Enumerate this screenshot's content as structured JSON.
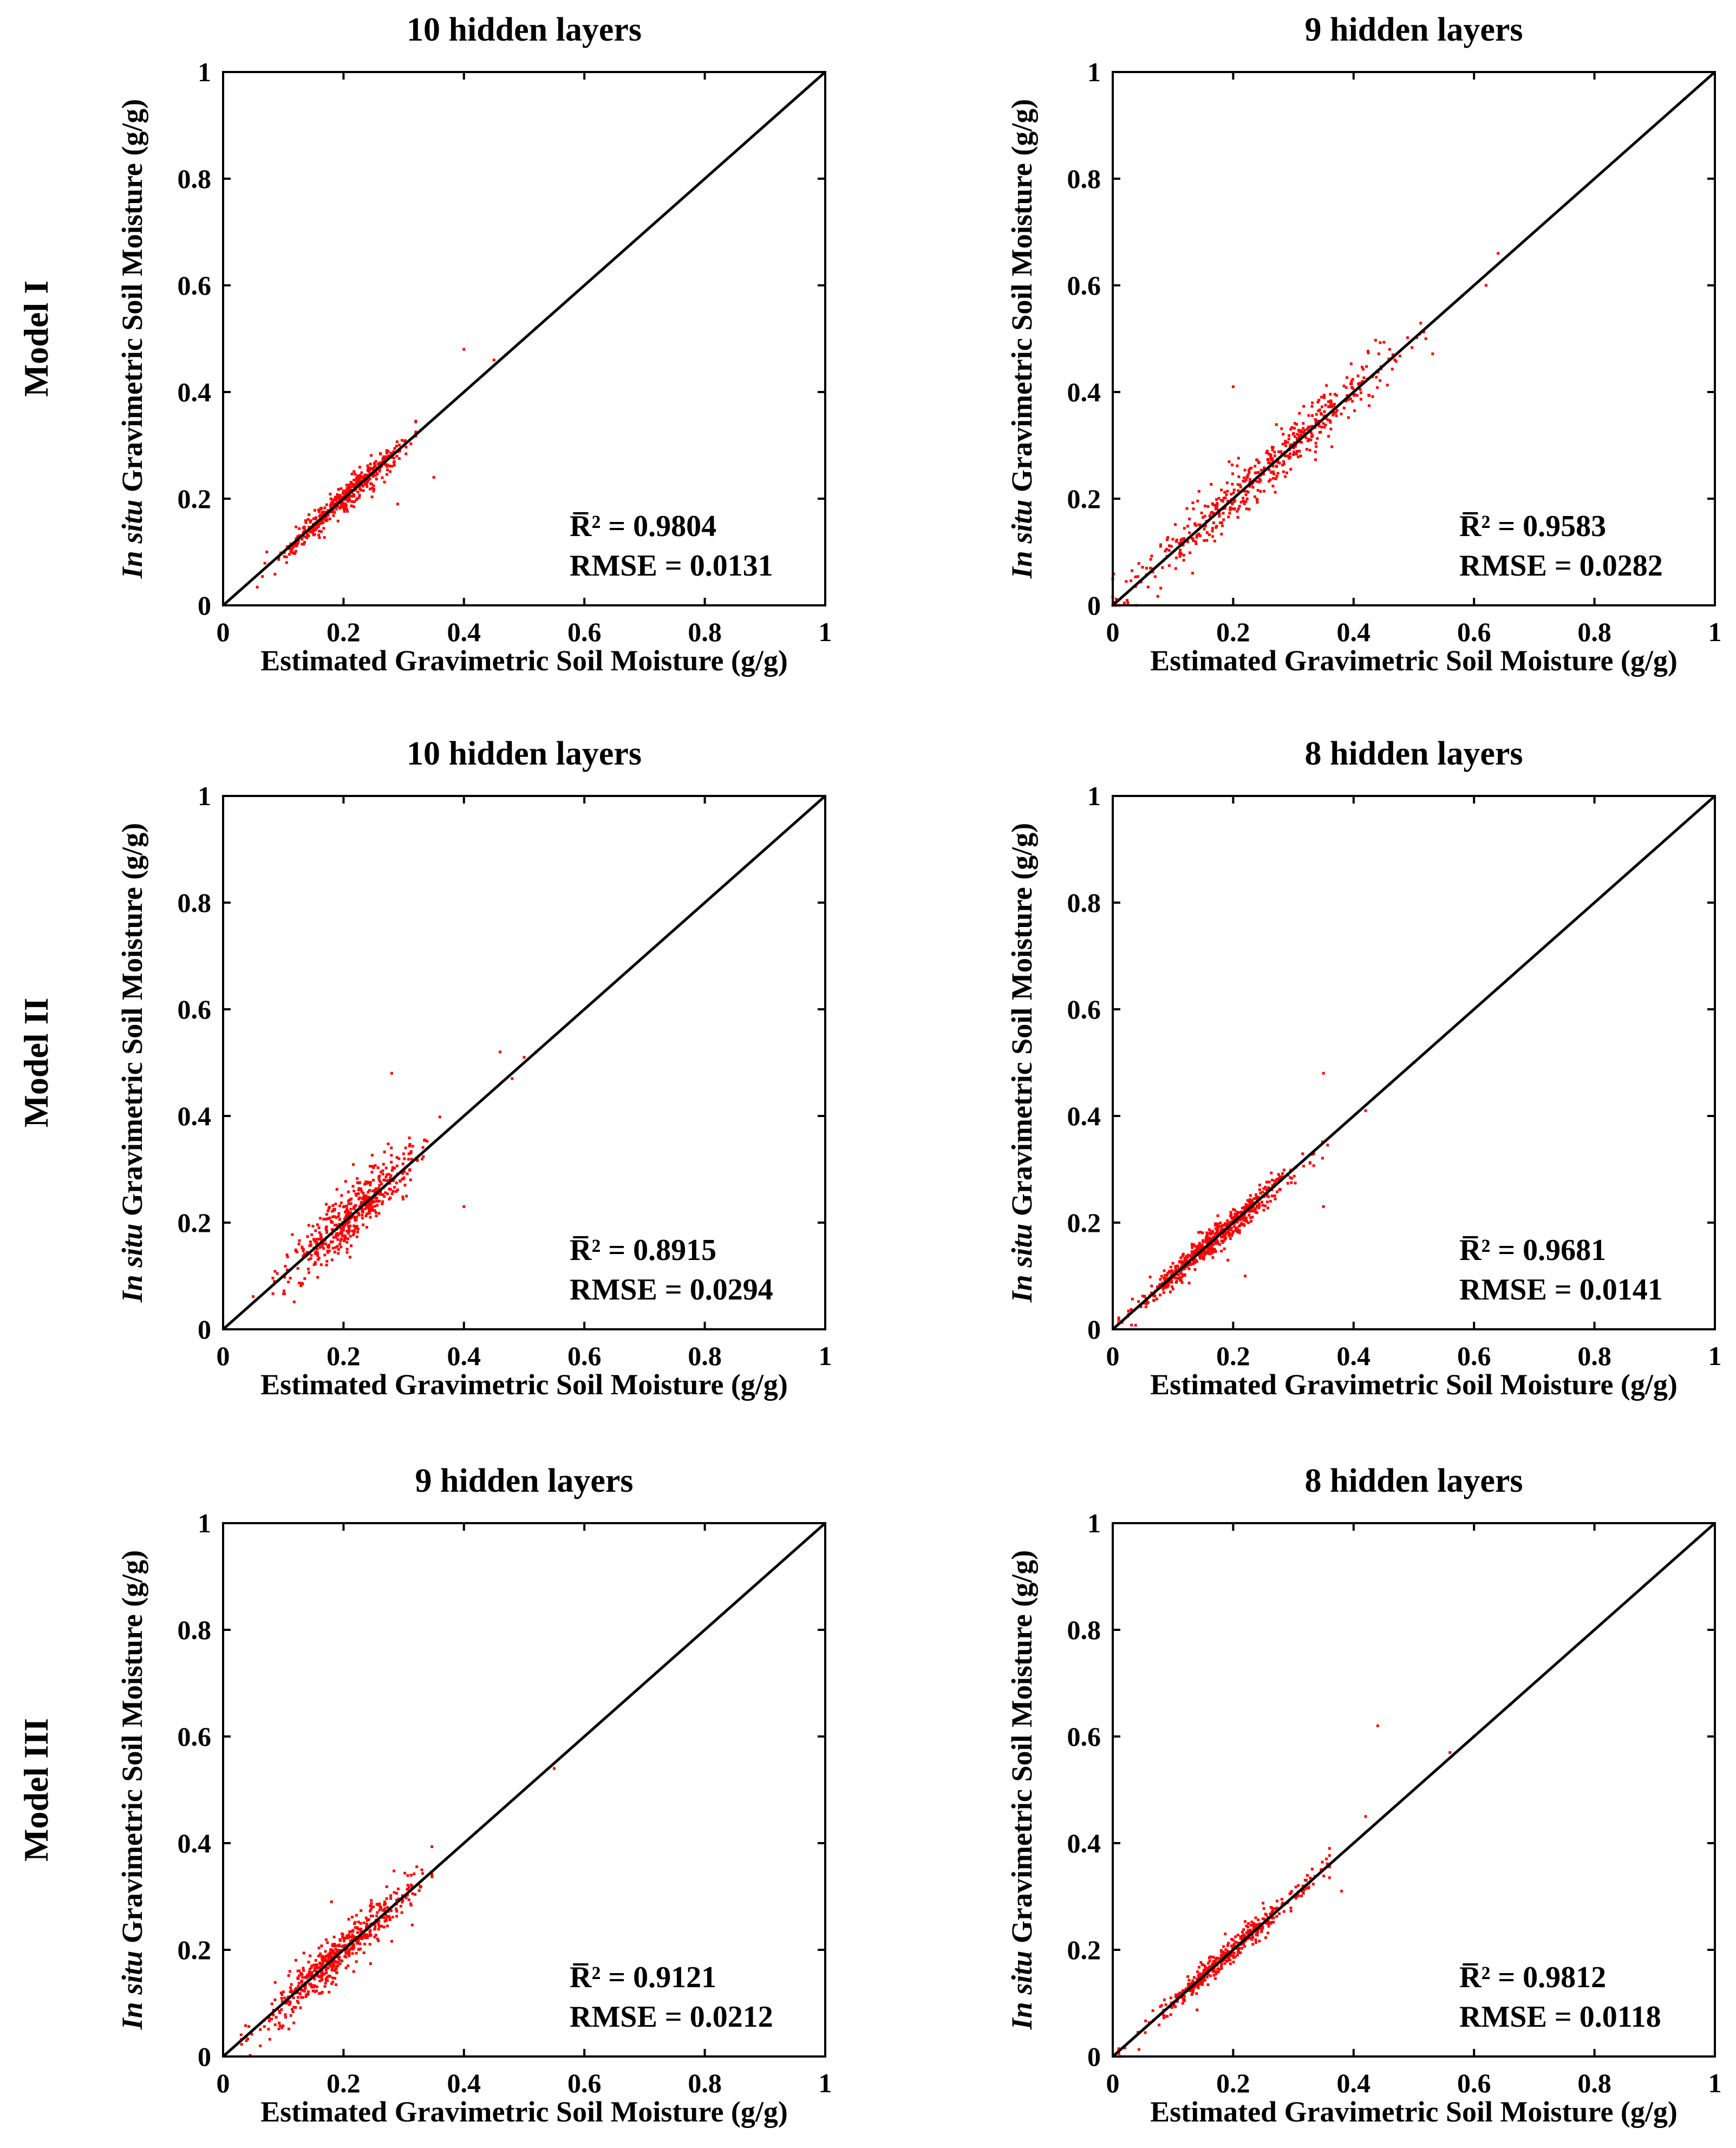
{
  "row_labels": [
    "Model I",
    "Model II",
    "Model III"
  ],
  "colors": {
    "points": "#ff0000",
    "line": "#000000"
  },
  "chart_data": [
    {
      "type": "scatter",
      "row": 0,
      "col": 0,
      "title": "10 hidden layers",
      "xlabel": "Estimated Gravimetric Soil Moisture (g/g)",
      "ylabel_italic": "In situ",
      "ylabel": " Gravimetric Soil Moisture (g/g)",
      "xlim": [
        0,
        1
      ],
      "ylim": [
        0,
        1
      ],
      "xticks": [
        "0",
        "0.2",
        "0.4",
        "0.6",
        "0.8",
        "1"
      ],
      "yticks": [
        "0",
        "0.2",
        "0.4",
        "0.6",
        "0.8",
        "1"
      ],
      "reference_line": "1:1",
      "r2_label": "R̅² = 0.9804",
      "rmse_label": "RMSE = 0.0131",
      "r2": 0.9804,
      "rmse": 0.0131,
      "points": {
        "count": 460,
        "x_mean": 0.205,
        "x_sd": 0.055,
        "x_min": 0.01,
        "x_max": 0.32,
        "noise": 0.012,
        "seed": 11
      },
      "extra_points": [
        [
          0.4,
          0.48
        ],
        [
          0.47,
          0.47
        ],
        [
          0.52,
          0.52
        ],
        [
          0.35,
          0.24
        ],
        [
          0.29,
          0.19
        ],
        [
          0.45,
          0.46
        ]
      ]
    },
    {
      "type": "scatter",
      "row": 0,
      "col": 1,
      "title": "9 hidden layers",
      "xlabel": "Estimated Gravimetric Soil Moisture (g/g)",
      "ylabel_italic": "In situ",
      "ylabel": " Gravimetric Soil Moisture (g/g)",
      "xlim": [
        0,
        1
      ],
      "ylim": [
        0,
        1
      ],
      "xticks": [
        "0",
        "0.2",
        "0.4",
        "0.6",
        "0.8",
        "1"
      ],
      "yticks": [
        "0",
        "0.2",
        "0.4",
        "0.6",
        "0.8",
        "1"
      ],
      "reference_line": "1:1",
      "r2_label": "R̅² = 0.9583",
      "rmse_label": "RMSE = 0.0282",
      "r2": 0.9583,
      "rmse": 0.0282,
      "points": {
        "count": 520,
        "x_mean": 0.25,
        "x_sd": 0.11,
        "x_min": 0.0,
        "x_max": 0.55,
        "noise": 0.024,
        "seed": 23
      },
      "extra_points": [
        [
          0.2,
          0.41
        ],
        [
          0.64,
          0.66
        ],
        [
          0.62,
          0.6
        ],
        [
          0.95,
          0.95
        ],
        [
          0.58,
          0.58
        ],
        [
          0.52,
          0.5
        ],
        [
          0.46,
          0.48
        ]
      ]
    },
    {
      "type": "scatter",
      "row": 1,
      "col": 0,
      "title": "10 hidden layers",
      "xlabel": "Estimated Gravimetric Soil Moisture (g/g)",
      "ylabel_italic": "In situ",
      "ylabel": " Gravimetric Soil Moisture (g/g)",
      "xlim": [
        0,
        1
      ],
      "ylim": [
        0,
        1
      ],
      "xticks": [
        "0",
        "0.2",
        "0.4",
        "0.6",
        "0.8",
        "1"
      ],
      "yticks": [
        "0",
        "0.2",
        "0.4",
        "0.6",
        "0.8",
        "1"
      ],
      "reference_line": "1:1",
      "r2_label": "R̅² = 0.8915",
      "rmse_label": "RMSE = 0.0294",
      "r2": 0.8915,
      "rmse": 0.0294,
      "points": {
        "count": 500,
        "x_mean": 0.22,
        "x_sd": 0.055,
        "x_min": 0.05,
        "x_max": 0.36,
        "noise": 0.026,
        "seed": 37
      },
      "extra_points": [
        [
          0.28,
          0.48
        ],
        [
          0.46,
          0.52
        ],
        [
          0.5,
          0.51
        ],
        [
          0.4,
          0.23
        ],
        [
          0.52,
          0.52
        ],
        [
          0.48,
          0.47
        ]
      ]
    },
    {
      "type": "scatter",
      "row": 1,
      "col": 1,
      "title": "8 hidden layers",
      "xlabel": "Estimated Gravimetric Soil Moisture (g/g)",
      "ylabel_italic": "In situ",
      "ylabel": " Gravimetric Soil Moisture (g/g)",
      "xlim": [
        0,
        1
      ],
      "ylim": [
        0,
        1
      ],
      "xticks": [
        "0",
        "0.2",
        "0.4",
        "0.6",
        "0.8",
        "1"
      ],
      "yticks": [
        "0",
        "0.2",
        "0.4",
        "0.6",
        "0.8",
        "1"
      ],
      "reference_line": "1:1",
      "r2_label": "R̅² = 0.9681",
      "rmse_label": "RMSE = 0.0141",
      "r2": 0.9681,
      "rmse": 0.0141,
      "points": {
        "count": 620,
        "x_mean": 0.17,
        "x_sd": 0.065,
        "x_min": 0.01,
        "x_max": 0.36,
        "noise": 0.013,
        "seed": 53
      },
      "extra_points": [
        [
          0.35,
          0.48
        ],
        [
          0.35,
          0.23
        ],
        [
          0.5,
          0.5
        ],
        [
          0.46,
          0.46
        ],
        [
          0.22,
          0.1
        ],
        [
          0.42,
          0.41
        ],
        [
          0.64,
          0.64
        ]
      ]
    },
    {
      "type": "scatter",
      "row": 2,
      "col": 0,
      "title": "9 hidden layers",
      "xlabel": "Estimated Gravimetric Soil Moisture (g/g)",
      "ylabel_italic": "In situ",
      "ylabel": " Gravimetric Soil Moisture (g/g)",
      "xlim": [
        0,
        1
      ],
      "ylim": [
        0,
        1
      ],
      "xticks": [
        "0",
        "0.2",
        "0.4",
        "0.6",
        "0.8",
        "1"
      ],
      "yticks": [
        "0",
        "0.2",
        "0.4",
        "0.6",
        "0.8",
        "1"
      ],
      "reference_line": "1:1",
      "r2_label": "R̅² = 0.9121",
      "rmse_label": "RMSE = 0.0212",
      "r2": 0.9121,
      "rmse": 0.0212,
      "points": {
        "count": 560,
        "x_mean": 0.19,
        "x_sd": 0.06,
        "x_min": 0.03,
        "x_max": 0.36,
        "noise": 0.02,
        "seed": 71
      },
      "extra_points": [
        [
          0.55,
          0.54
        ],
        [
          0.42,
          0.42
        ],
        [
          0.37,
          0.37
        ],
        [
          0.18,
          0.29
        ],
        [
          0.33,
          0.35
        ]
      ]
    },
    {
      "type": "scatter",
      "row": 2,
      "col": 1,
      "title": "8 hidden layers",
      "xlabel": "Estimated Gravimetric Soil Moisture (g/g)",
      "ylabel_italic": "In situ",
      "ylabel": " Gravimetric Soil Moisture (g/g)",
      "xlim": [
        0,
        1
      ],
      "ylim": [
        0,
        1
      ],
      "xticks": [
        "0",
        "0.2",
        "0.4",
        "0.6",
        "0.8",
        "1"
      ],
      "yticks": [
        "0",
        "0.2",
        "0.4",
        "0.6",
        "0.8",
        "1"
      ],
      "reference_line": "1:1",
      "r2_label": "R̅² = 0.9812",
      "rmse_label": "RMSE = 0.0118",
      "r2": 0.9812,
      "rmse": 0.0118,
      "points": {
        "count": 420,
        "x_mean": 0.2,
        "x_sd": 0.07,
        "x_min": 0.01,
        "x_max": 0.36,
        "noise": 0.011,
        "seed": 89
      },
      "extra_points": [
        [
          0.44,
          0.62
        ],
        [
          0.97,
          0.97
        ],
        [
          0.6,
          0.6
        ],
        [
          0.56,
          0.57
        ],
        [
          0.66,
          0.66
        ],
        [
          0.42,
          0.45
        ],
        [
          0.38,
          0.31
        ]
      ]
    }
  ]
}
